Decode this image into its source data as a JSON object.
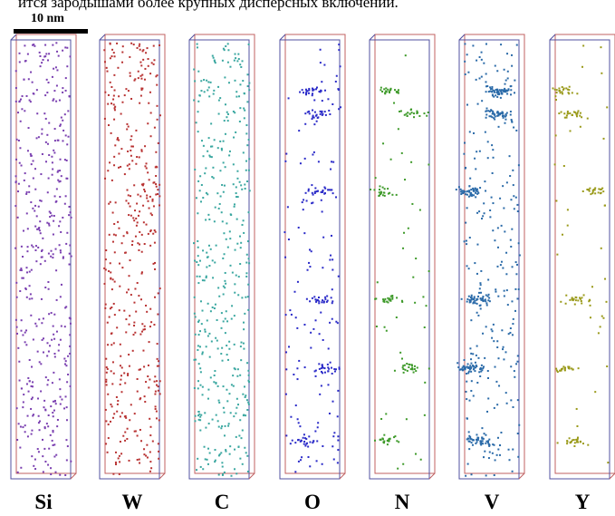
{
  "caption": "ится зародышами более крупных дисперсных включений.",
  "scale_bar": "10 nm",
  "panels": [
    {
      "label": "Si",
      "color": "#7a3fb0"
    },
    {
      "label": "W",
      "color": "#b83232"
    },
    {
      "label": "C",
      "color": "#3aa7a0"
    },
    {
      "label": "O",
      "color": "#2a2ac8"
    },
    {
      "label": "N",
      "color": "#3e9a2a"
    },
    {
      "label": "V",
      "color": "#2a6aa8"
    },
    {
      "label": "Y",
      "color": "#9a9a1a"
    }
  ]
}
